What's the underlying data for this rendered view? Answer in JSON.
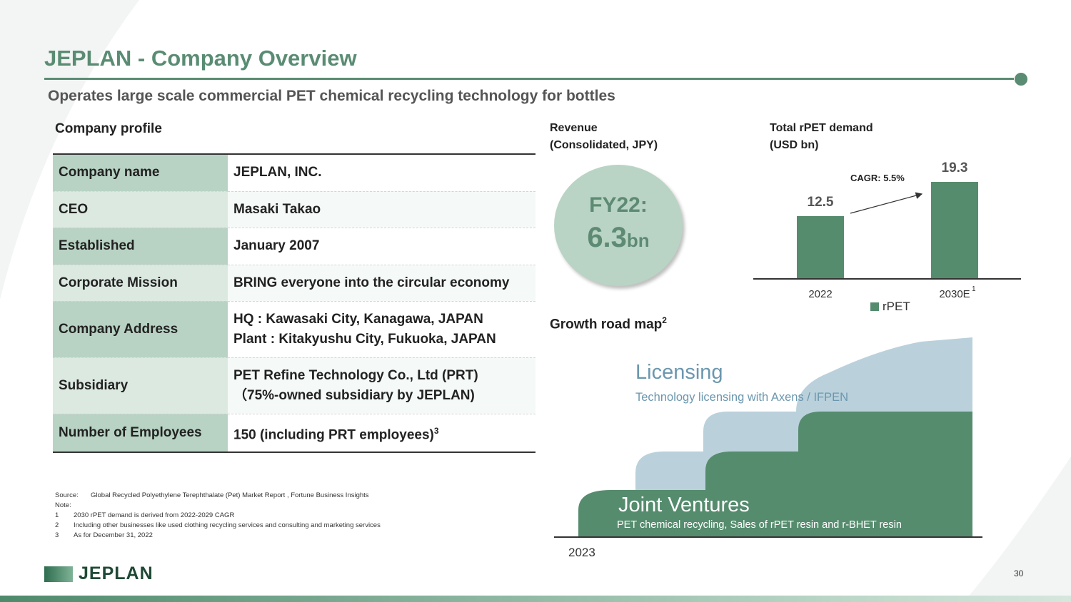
{
  "header": {
    "title": "JEPLAN - Company Overview",
    "subtitle": "Operates large scale commercial PET chemical recycling technology for bottles"
  },
  "profile": {
    "heading": "Company profile",
    "rows": [
      {
        "key": "Company name",
        "value": "JEPLAN, INC."
      },
      {
        "key": "CEO",
        "value": "Masaki Takao"
      },
      {
        "key": "Established",
        "value": "January 2007"
      },
      {
        "key": "Corporate Mission",
        "value": "BRING everyone into the circular economy"
      },
      {
        "key": "Company Address",
        "value": "HQ : Kawasaki City, Kanagawa, JAPAN",
        "value2": "Plant : Kitakyushu City, Fukuoka, JAPAN"
      },
      {
        "key": "Subsidiary",
        "value": "PET Refine Technology Co., Ltd (PRT)",
        "value2": "（75%-owned subsidiary by JEPLAN)"
      },
      {
        "key": "Number of Employees",
        "value": "150 (including PRT employees)",
        "sup": "3"
      }
    ]
  },
  "notes": {
    "source_label": "Source:",
    "source_text": "Global Recycled Polyethylene Terephthalate (Pet) Market Report , Fortune Business Insights",
    "note_label": "Note:",
    "items": [
      {
        "num": "1",
        "text": "2030 rPET demand is derived from 2022-2029 CAGR"
      },
      {
        "num": "2",
        "text": "Including other businesses like used clothing recycling services and consulting and marketing services"
      },
      {
        "num": "3",
        "text": "As for December 31, 2022"
      }
    ]
  },
  "revenue": {
    "heading_line1": "Revenue",
    "heading_line2": "(Consolidated, JPY)",
    "period": "FY22:",
    "amount": "6.3",
    "unit": "bn"
  },
  "demand": {
    "heading_line1": "Total rPET demand",
    "heading_line2": "(USD bn)",
    "cagr": "CAGR: 5.5%",
    "footnote": "1"
  },
  "chart_data": {
    "type": "bar",
    "title": "Total rPET demand (USD bn)",
    "categories": [
      "2022",
      "2030E"
    ],
    "series": [
      {
        "name": "rPET",
        "values": [
          12.5,
          19.3
        ]
      }
    ],
    "value_labels": [
      "12.5",
      "19.3"
    ],
    "annotations": [
      "CAGR: 5.5%"
    ],
    "ylim": [
      0,
      20
    ],
    "legend": "bottom",
    "grid": false
  },
  "roadmap": {
    "heading": "Growth road map",
    "heading_sup": "2",
    "licensing_title": "Licensing",
    "licensing_sub": "Technology  licensing with  Axens / IFPEN",
    "jv_title": "Joint Ventures",
    "jv_sub": "PET chemical recycling, Sales of rPET resin and r-BHET resin",
    "start_year": "2023"
  },
  "footer": {
    "logo": "JEPLAN",
    "page": "30"
  },
  "colors": {
    "accent_green": "#5a8c73",
    "bar_green": "#568c6e",
    "light_blue": "#bad1dc",
    "licensing_text": "#6b97ae"
  }
}
